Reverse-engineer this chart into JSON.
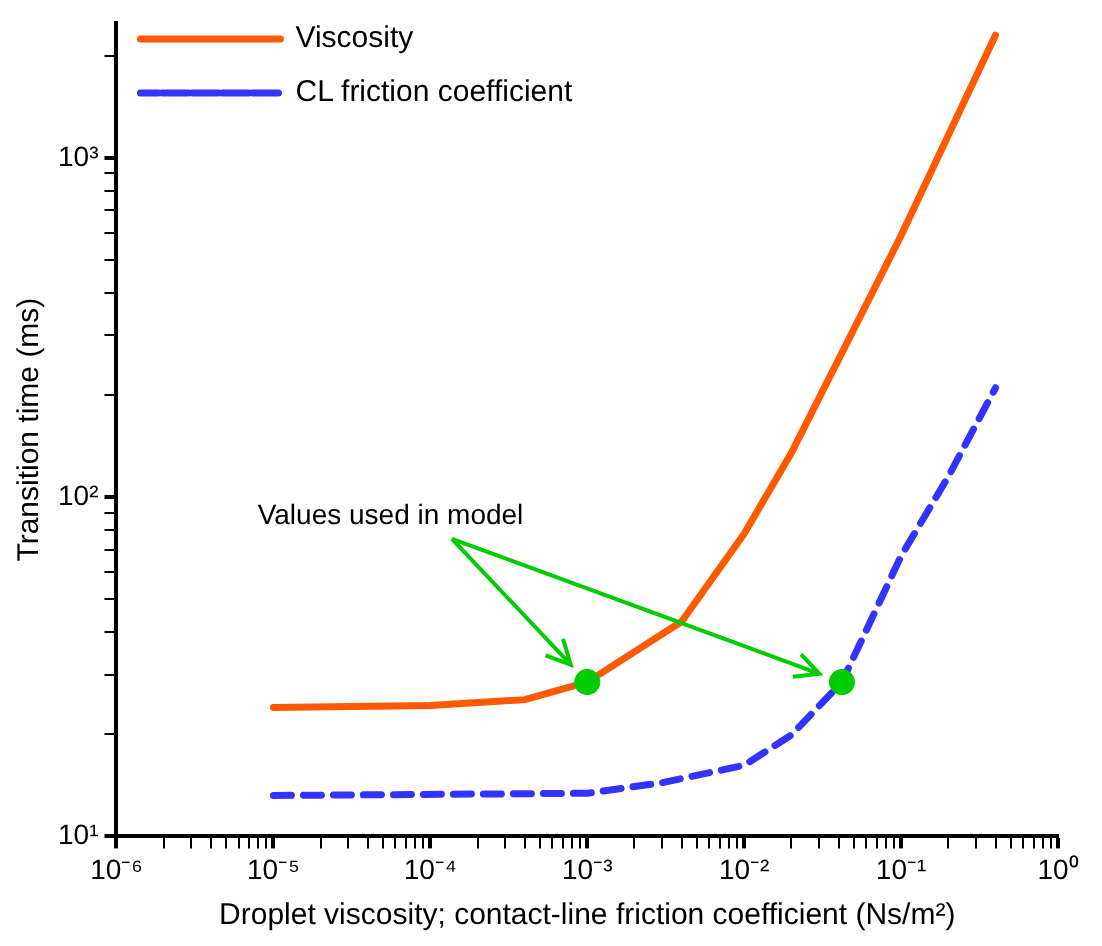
{
  "chart_data": {
    "type": "line",
    "xlabel": "Droplet viscosity; contact-line friction coefficient (Ns/m²)",
    "ylabel": "Transition time (ms)",
    "log": "xy",
    "xlim": [
      1e-06,
      1
    ],
    "ylim": [
      10,
      2500
    ],
    "xticks": [
      {
        "value": 1e-06,
        "label": "10⁻⁶"
      },
      {
        "value": 2e-06,
        "label": null
      },
      {
        "value": 3e-06,
        "label": null
      },
      {
        "value": 4e-06,
        "label": null
      },
      {
        "value": 5e-06,
        "label": null
      },
      {
        "value": 6e-06,
        "label": null
      },
      {
        "value": 7e-06,
        "label": null
      },
      {
        "value": 8e-06,
        "label": null
      },
      {
        "value": 9e-06,
        "label": null
      },
      {
        "value": 1e-05,
        "label": "10⁻⁵"
      },
      {
        "value": 2e-05,
        "label": null
      },
      {
        "value": 3e-05,
        "label": null
      },
      {
        "value": 4e-05,
        "label": null
      },
      {
        "value": 5e-05,
        "label": null
      },
      {
        "value": 6e-05,
        "label": null
      },
      {
        "value": 7e-05,
        "label": null
      },
      {
        "value": 8e-05,
        "label": null
      },
      {
        "value": 9e-05,
        "label": null
      },
      {
        "value": 0.0001,
        "label": "10⁻⁴"
      },
      {
        "value": 0.0002,
        "label": null
      },
      {
        "value": 0.0003,
        "label": null
      },
      {
        "value": 0.0004,
        "label": null
      },
      {
        "value": 0.0005,
        "label": null
      },
      {
        "value": 0.0006,
        "label": null
      },
      {
        "value": 0.0007,
        "label": null
      },
      {
        "value": 0.0008,
        "label": null
      },
      {
        "value": 0.0009,
        "label": null
      },
      {
        "value": 0.001,
        "label": "10⁻³"
      },
      {
        "value": 0.002,
        "label": null
      },
      {
        "value": 0.003,
        "label": null
      },
      {
        "value": 0.004,
        "label": null
      },
      {
        "value": 0.005,
        "label": null
      },
      {
        "value": 0.006,
        "label": null
      },
      {
        "value": 0.007,
        "label": null
      },
      {
        "value": 0.008,
        "label": null
      },
      {
        "value": 0.009,
        "label": null
      },
      {
        "value": 0.01,
        "label": "10⁻²"
      },
      {
        "value": 0.02,
        "label": null
      },
      {
        "value": 0.03,
        "label": null
      },
      {
        "value": 0.04,
        "label": null
      },
      {
        "value": 0.05,
        "label": null
      },
      {
        "value": 0.06,
        "label": null
      },
      {
        "value": 0.07,
        "label": null
      },
      {
        "value": 0.08,
        "label": null
      },
      {
        "value": 0.09,
        "label": null
      },
      {
        "value": 0.1,
        "label": "10⁻¹"
      },
      {
        "value": 0.2,
        "label": null
      },
      {
        "value": 0.3,
        "label": null
      },
      {
        "value": 0.4,
        "label": null
      },
      {
        "value": 0.5,
        "label": null
      },
      {
        "value": 0.6,
        "label": null
      },
      {
        "value": 0.7,
        "label": null
      },
      {
        "value": 0.8,
        "label": null
      },
      {
        "value": 0.9,
        "label": null
      },
      {
        "value": 1,
        "label": "10⁰"
      }
    ],
    "yticks": [
      {
        "value": 10,
        "label": "10¹"
      },
      {
        "value": 20,
        "label": null
      },
      {
        "value": 30,
        "label": null
      },
      {
        "value": 40,
        "label": null
      },
      {
        "value": 50,
        "label": null
      },
      {
        "value": 60,
        "label": null
      },
      {
        "value": 70,
        "label": null
      },
      {
        "value": 80,
        "label": null
      },
      {
        "value": 90,
        "label": null
      },
      {
        "value": 100,
        "label": "10²"
      },
      {
        "value": 200,
        "label": null
      },
      {
        "value": 300,
        "label": null
      },
      {
        "value": 400,
        "label": null
      },
      {
        "value": 500,
        "label": null
      },
      {
        "value": 600,
        "label": null
      },
      {
        "value": 700,
        "label": null
      },
      {
        "value": 800,
        "label": null
      },
      {
        "value": 900,
        "label": null
      },
      {
        "value": 1000,
        "label": "10³"
      },
      {
        "value": 2000,
        "label": null
      }
    ],
    "grid": false,
    "legend": "top left",
    "series": [
      {
        "name": "Viscosity",
        "color": "#ff5a00",
        "line_style": "solid",
        "x": [
          1e-05,
          0.0001,
          0.0004,
          0.001,
          0.004,
          0.01,
          0.02,
          0.1,
          0.4
        ],
        "values": [
          24,
          24.3,
          25.3,
          28.5,
          43,
          78,
          135,
          590,
          2300
        ]
      },
      {
        "name": "CL friction coefficient",
        "color": "#3333ff",
        "line_style": "dashed",
        "x": [
          1e-05,
          0.001,
          0.003,
          0.01,
          0.02,
          0.042,
          0.1,
          0.2,
          0.4
        ],
        "values": [
          13.2,
          13.4,
          14.4,
          16.2,
          19.9,
          28.5,
          67,
          115,
          210
        ]
      },
      {
        "type": "scatter",
        "color": "#00cc00",
        "marker": "circle",
        "x": [
          0.001,
          0.042
        ],
        "values": [
          28.5,
          28.5
        ]
      }
    ],
    "annotations": [
      "Values used in model"
    ]
  }
}
